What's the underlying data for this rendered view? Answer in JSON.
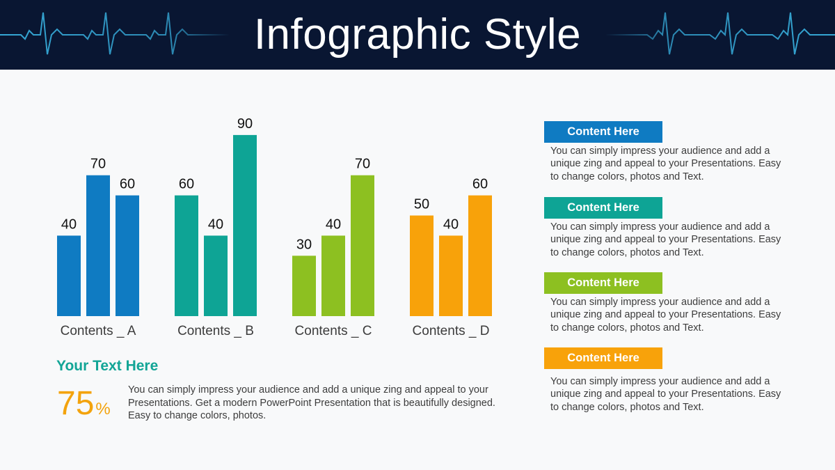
{
  "title": "Infographic Style",
  "colors": {
    "header_bg": "#091632",
    "pulse_line": "#3ab8e8",
    "text": "#3c3c3c",
    "blue": "#0f7bc2",
    "teal": "#0ea495",
    "green": "#8dc021",
    "orange": "#f8a20a",
    "heading_teal": "#12a596",
    "percent_orange": "#f3a30d"
  },
  "chart_data": {
    "type": "bar",
    "categories": [
      "Contents _ A",
      "Contents _ B",
      "Contents _ C",
      "Contents _ D"
    ],
    "values": [
      [
        40,
        70,
        60
      ],
      [
        60,
        40,
        90
      ],
      [
        30,
        40,
        70
      ],
      [
        50,
        40,
        60
      ]
    ],
    "group_colors": [
      "#0f7bc2",
      "#0ea495",
      "#8dc021",
      "#f8a20a"
    ],
    "data_labels": true,
    "ylim": [
      0,
      100
    ],
    "grid": false,
    "legend": "none",
    "title": "",
    "xlabel": "",
    "ylabel": ""
  },
  "summary": {
    "heading": "Your Text Here",
    "percent": "75",
    "percent_unit": "%",
    "body": "You can simply impress your audience and add a unique zing and appeal to your Presentations. Get a modern PowerPoint  Presentation that is beautifully designed. Easy to change colors, photos."
  },
  "content_items": [
    {
      "label": "Content Here",
      "color": "#0f7bc2",
      "text": "You can simply impress your audience and add a unique zing and appeal to your Presentations. Easy to change colors, photos and Text."
    },
    {
      "label": "Content Here",
      "color": "#0ea495",
      "text": "You can simply impress your audience and add a unique zing and appeal to your Presentations. Easy to change colors, photos and Text."
    },
    {
      "label": "Content Here",
      "color": "#8dc021",
      "text": "You can simply impress your audience and add a unique zing and appeal to your Presentations. Easy to change colors, photos and Text."
    },
    {
      "label": "Content Here",
      "color": "#f8a20a",
      "text": "You can simply impress your audience and add a unique zing and appeal to your Presentations. Easy to change colors, photos and Text."
    }
  ]
}
